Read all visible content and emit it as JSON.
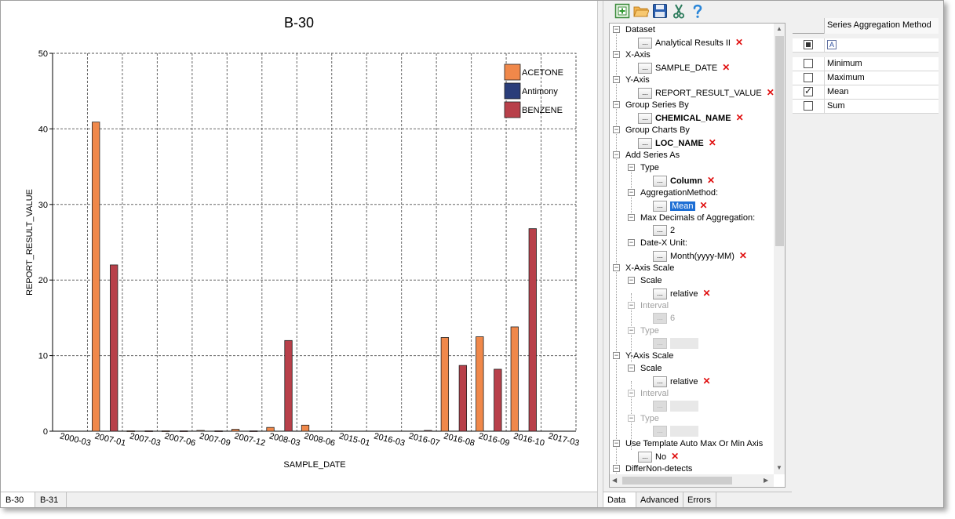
{
  "chart_tabs": [
    {
      "label": "B-30",
      "active": true
    },
    {
      "label": "B-31",
      "active": false
    }
  ],
  "prop_tabs": [
    {
      "label": "Data",
      "active": true
    },
    {
      "label": "Advanced",
      "active": false
    },
    {
      "label": "Errors",
      "active": false
    }
  ],
  "toolbar": {
    "icons": [
      "add-chart-icon",
      "open-folder-icon",
      "save-disk-icon",
      "cut-scissors-icon",
      "help-icon"
    ]
  },
  "tree": {
    "dataset_label": "Dataset",
    "dataset_value": "Analytical Results II",
    "xaxis_label": "X-Axis",
    "xaxis_value": "SAMPLE_DATE",
    "yaxis_label": "Y-Axis",
    "yaxis_value": "REPORT_RESULT_VALUE",
    "group_series_label": "Group Series By",
    "group_series_value": "CHEMICAL_NAME",
    "group_charts_label": "Group Charts By",
    "group_charts_value": "LOC_NAME",
    "add_series_label": "Add Series As",
    "type_label": "Type",
    "type_value": "Column",
    "agg_method_label": "AggregationMethod:",
    "agg_method_value": "Mean",
    "max_decimals_label": "Max Decimals of Aggregation:",
    "max_decimals_value": "2",
    "date_unit_label": "Date-X Unit:",
    "date_unit_value": "Month(yyyy-MM)",
    "xaxis_scale_label": "X-Axis Scale",
    "x_scale_label": "Scale",
    "x_scale_value": "relative",
    "x_interval_label": "Interval",
    "x_interval_value": "6",
    "x_type_label": "Type",
    "yaxis_scale_label": "Y-Axis Scale",
    "y_scale_label": "Scale",
    "y_scale_value": "relative",
    "y_interval_label": "Interval",
    "y_type_label": "Type",
    "template_label": "Use Template Auto Max Or Min Axis",
    "template_value": "No",
    "differ_label": "DifferNon-detects",
    "button_dots": "..."
  },
  "aggregation": {
    "header": "Series Aggregation Method",
    "format_glyph": "A",
    "rows": [
      {
        "label": "Minimum",
        "checked": false
      },
      {
        "label": "Maximum",
        "checked": false
      },
      {
        "label": "Mean",
        "checked": true
      },
      {
        "label": "Sum",
        "checked": false
      }
    ]
  },
  "chart_data": {
    "type": "bar",
    "title": "B-30",
    "xlabel": "SAMPLE_DATE",
    "ylabel": "REPORT_RESULT_VALUE",
    "ylim": [
      0,
      50
    ],
    "yticks": [
      "0",
      "10",
      "20",
      "30",
      "40",
      "50"
    ],
    "grid": true,
    "legend_position": "top-right",
    "categories": [
      "2000-03",
      "2007-01",
      "2007-03",
      "2007-06",
      "2007-09",
      "2007-12",
      "2008-03",
      "2008-06",
      "2015-01",
      "2016-03",
      "2016-07",
      "2016-08",
      "2016-09",
      "2016-10",
      "2017-03"
    ],
    "series": [
      {
        "name": "ACETONE",
        "color": "#f0884a",
        "values": [
          0,
          40.9,
          0.05,
          0.05,
          0.1,
          0.25,
          0.5,
          0.8,
          0,
          0,
          0,
          12.4,
          12.5,
          13.8,
          0
        ]
      },
      {
        "name": "Antimony",
        "color": "#2a3d7a",
        "values": [
          0,
          0,
          0,
          0,
          0,
          0,
          0,
          0,
          0,
          0,
          0,
          0,
          0,
          0,
          0
        ]
      },
      {
        "name": "BENZENE",
        "color": "#b8404a",
        "values": [
          0,
          22.0,
          0.05,
          0.05,
          0.05,
          0.05,
          12.0,
          0,
          0,
          0,
          0.1,
          8.7,
          8.2,
          26.8,
          0
        ]
      }
    ]
  }
}
